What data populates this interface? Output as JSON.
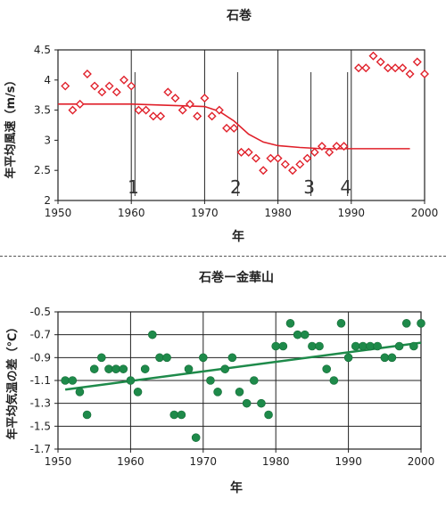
{
  "chart_data": [
    {
      "type": "scatter",
      "title": "石巻",
      "xlabel": "年",
      "ylabel": "年平均風速（m/s）",
      "xlim": [
        1950,
        2000
      ],
      "ylim": [
        2,
        4.5
      ],
      "xticks": [
        "1950",
        "1960",
        "1970",
        "1980",
        "1990",
        "2000"
      ],
      "yticks": [
        "2",
        "2.5",
        "3",
        "3.5",
        "4",
        "4.5"
      ],
      "grid": "vertical",
      "marker": "open-diamond",
      "color": "#e0202a",
      "series": [
        {
          "x": [
            1951,
            1952,
            1953,
            1954,
            1955,
            1956,
            1957,
            1958,
            1959,
            1960,
            1961,
            1962,
            1963,
            1964,
            1965,
            1966,
            1967,
            1968,
            1969,
            1970,
            1971,
            1972,
            1973,
            1974,
            1975,
            1976,
            1977,
            1978,
            1979,
            1980,
            1981,
            1982,
            1983,
            1984,
            1985,
            1986,
            1987,
            1988,
            1989,
            1991,
            1992,
            1993,
            1994,
            1995,
            1996,
            1997,
            1998,
            1999,
            2000
          ],
          "y": [
            3.9,
            3.5,
            3.6,
            4.1,
            3.9,
            3.8,
            3.9,
            3.8,
            4.0,
            3.9,
            3.5,
            3.5,
            3.4,
            3.4,
            3.8,
            3.7,
            3.5,
            3.6,
            3.4,
            3.7,
            3.4,
            3.5,
            3.2,
            3.2,
            2.8,
            2.8,
            2.7,
            2.5,
            2.7,
            2.7,
            2.6,
            2.5,
            2.6,
            2.7,
            2.8,
            2.9,
            2.8,
            2.9,
            2.9,
            4.2,
            4.2,
            4.4,
            4.3,
            4.2,
            4.2,
            4.2,
            4.1,
            4.3,
            4.1
          ]
        }
      ],
      "trend": {
        "x": [
          1950,
          1955,
          1960,
          1965,
          1970,
          1972,
          1974,
          1976,
          1978,
          1980,
          1983,
          1986,
          1990,
          1995,
          1998
        ],
        "y": [
          3.6,
          3.6,
          3.6,
          3.58,
          3.56,
          3.48,
          3.32,
          3.1,
          2.97,
          2.91,
          2.88,
          2.86,
          2.86,
          2.86,
          2.86
        ]
      },
      "annotations": [
        {
          "label": "1",
          "x": 1960.5
        },
        {
          "label": "2",
          "x": 1974.5
        },
        {
          "label": "3",
          "x": 1984.5
        },
        {
          "label": "4",
          "x": 1989.5
        }
      ]
    },
    {
      "type": "scatter",
      "title": "石巻ー金華山",
      "xlabel": "年",
      "ylabel": "年平均気温の差（℃）",
      "xlim": [
        1950,
        2000
      ],
      "ylim": [
        -1.7,
        -0.5
      ],
      "xticks": [
        "1950",
        "1960",
        "1970",
        "1980",
        "1990",
        "2000"
      ],
      "yticks": [
        "-0.5",
        "-0.7",
        "-0.9",
        "-1.1",
        "-1.3",
        "-1.5",
        "-1.7"
      ],
      "grid": "both",
      "marker": "filled-circle",
      "color": "#1e8a4a",
      "series": [
        {
          "x": [
            1951,
            1952,
            1953,
            1954,
            1955,
            1956,
            1957,
            1958,
            1959,
            1960,
            1961,
            1962,
            1963,
            1964,
            1965,
            1966,
            1967,
            1968,
            1969,
            1970,
            1971,
            1972,
            1973,
            1974,
            1975,
            1976,
            1977,
            1978,
            1979,
            1980,
            1981,
            1982,
            1983,
            1984,
            1985,
            1986,
            1987,
            1988,
            1989,
            1990,
            1991,
            1992,
            1993,
            1994,
            1995,
            1996,
            1997,
            1998,
            1999,
            2000
          ],
          "y": [
            -1.1,
            -1.1,
            -1.2,
            -1.4,
            -1.0,
            -0.9,
            -1.0,
            -1.0,
            -1.0,
            -1.1,
            -1.2,
            -1.0,
            -0.7,
            -0.9,
            -0.9,
            -1.4,
            -1.4,
            -1.0,
            -1.6,
            -0.9,
            -1.1,
            -1.2,
            -1.0,
            -0.9,
            -1.2,
            -1.3,
            -1.1,
            -1.3,
            -1.4,
            -0.8,
            -0.8,
            -0.6,
            -0.7,
            -0.7,
            -0.8,
            -0.8,
            -1.0,
            -1.1,
            -0.6,
            -0.9,
            -0.8,
            -0.8,
            -0.8,
            -0.8,
            -0.9,
            -0.9,
            -0.8,
            -0.6,
            -0.8,
            -0.6
          ]
        }
      ],
      "trend": {
        "x": [
          1951,
          2000
        ],
        "y": [
          -1.18,
          -0.77
        ]
      }
    }
  ]
}
